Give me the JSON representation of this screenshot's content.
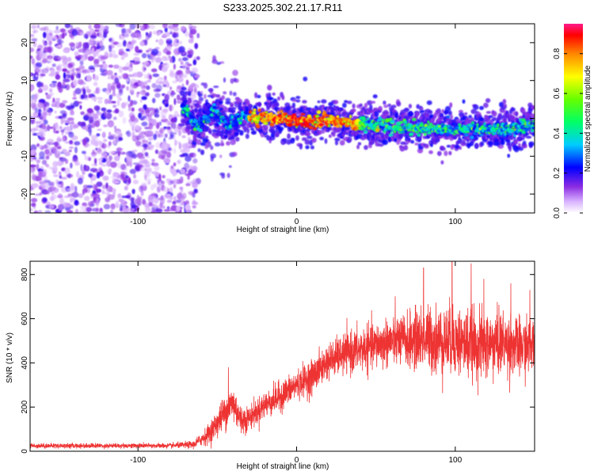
{
  "title": "S233.2025.302.21.17.R11",
  "chart_data": [
    {
      "type": "heatmap",
      "xlabel": "Height of straight line (km)",
      "ylabel": "Frequency (Hz)",
      "xlim": [
        -168,
        150
      ],
      "ylim": [
        -25,
        25
      ],
      "xticks": [
        -100,
        0,
        100
      ],
      "yticks": [
        -20,
        -10,
        0,
        10,
        20
      ],
      "xtick_labels": [
        "-100",
        "0",
        "100"
      ],
      "ytick_labels": [
        "-20",
        "-10",
        "0",
        "10",
        "20"
      ],
      "colorbar": {
        "label": "Normalized spectral amplitude",
        "range": [
          0,
          0.95
        ],
        "ticks": [
          0,
          0.2,
          0.4,
          0.6,
          0.8
        ],
        "tick_labels": [
          "0.0",
          "0.2",
          "0.4",
          "0.6",
          "0.8"
        ]
      },
      "ridge": {
        "description_points_km_hz": [
          [
            -70,
            2.5
          ],
          [
            -62,
            -2.5
          ],
          [
            -52,
            2.0
          ],
          [
            -43,
            -2.0
          ],
          [
            -35,
            0.5
          ],
          [
            -25,
            0.2
          ],
          [
            -15,
            0.3
          ],
          [
            -5,
            0.0
          ],
          [
            0,
            -1.0
          ],
          [
            10,
            -0.5
          ],
          [
            20,
            -0.6
          ],
          [
            30,
            -1.2
          ],
          [
            40,
            -1.5
          ],
          [
            50,
            -1.8
          ],
          [
            60,
            -2.2
          ],
          [
            70,
            -2.5
          ],
          [
            80,
            -2.5
          ],
          [
            90,
            -3.0
          ],
          [
            100,
            -3.0
          ],
          [
            110,
            -2.8
          ],
          [
            120,
            -3.0
          ],
          [
            130,
            -3.2
          ],
          [
            140,
            -2.5
          ],
          [
            150,
            -1.5
          ]
        ],
        "peak_amplitude": 0.9
      },
      "noise_region_km": [
        -168,
        -62
      ]
    },
    {
      "type": "line",
      "xlabel": "Height of straight line (km)",
      "ylabel": "SNR (10 * v/v)",
      "xlim": [
        -168,
        150
      ],
      "ylim": [
        0,
        860
      ],
      "xticks": [
        -100,
        0,
        100
      ],
      "yticks": [
        0,
        200,
        400,
        600,
        800
      ],
      "xtick_labels": [
        "-100",
        "0",
        "100"
      ],
      "ytick_labels": [
        "0",
        "200",
        "400",
        "600",
        "800"
      ],
      "series": [
        {
          "name": "SNR",
          "color": "#ee3333",
          "envelope_km": [
            -168,
            -80,
            -65,
            -55,
            -45,
            -40,
            -35,
            -30,
            -20,
            -10,
            0,
            10,
            20,
            30,
            40,
            50,
            60,
            70,
            80,
            90,
            100,
            110,
            120,
            130,
            140,
            150
          ],
          "envelope_mean": [
            25,
            25,
            30,
            80,
            180,
            220,
            140,
            150,
            210,
            250,
            300,
            340,
            410,
            440,
            460,
            480,
            500,
            500,
            510,
            500,
            500,
            480,
            480,
            490,
            470,
            480
          ],
          "envelope_spread": [
            10,
            10,
            15,
            40,
            70,
            80,
            60,
            50,
            55,
            60,
            60,
            70,
            70,
            80,
            90,
            90,
            100,
            110,
            130,
            140,
            140,
            140,
            140,
            130,
            120,
            110
          ],
          "peaks": [
            [
              -43,
              380
            ],
            [
              80,
              830
            ],
            [
              98,
              860
            ],
            [
              110,
              850
            ],
            [
              118,
              780
            ],
            [
              135,
              760
            ],
            [
              147,
              730
            ]
          ]
        }
      ]
    }
  ]
}
